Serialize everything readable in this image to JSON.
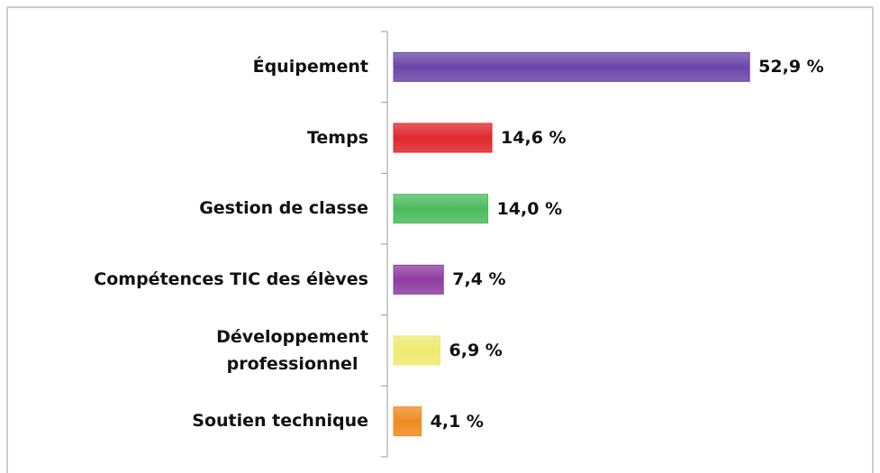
{
  "chart_data": {
    "type": "hbar",
    "categories": [
      "Équipement",
      "Temps",
      "Gestion de classe",
      "Compétences TIC des élèves",
      "Développement\nprofessionnel",
      "Soutien technique"
    ],
    "values": [
      52.9,
      14.6,
      14.0,
      7.4,
      6.9,
      4.1
    ],
    "value_labels": [
      "52,9 %",
      "14,6 %",
      "14,0 %",
      "7,4 %",
      "6,9 %",
      "4,1 %"
    ],
    "colors": [
      "#6a45a8",
      "#e0262b",
      "#4cbb5e",
      "#8e3ca0",
      "#eeea70",
      "#ef8a22"
    ]
  }
}
